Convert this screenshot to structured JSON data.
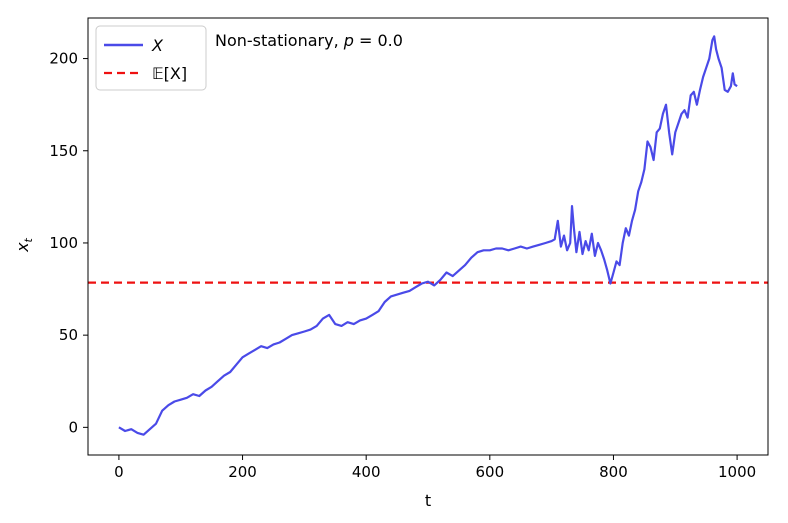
{
  "chart_data": {
    "type": "line",
    "xlabel": "t",
    "ylabel": "x",
    "ylabel_sub": "t",
    "xlim": [
      -50,
      1050
    ],
    "ylim": [
      -15,
      222
    ],
    "xticks": [
      0,
      200,
      400,
      600,
      800,
      1000
    ],
    "yticks": [
      0,
      50,
      100,
      150,
      200
    ],
    "annotation": {
      "prefix": "Non-stationary, ",
      "var": "p",
      "suffix": " = 0.0"
    },
    "legend": {
      "placement": "upper-left",
      "entries": [
        {
          "label": "X",
          "style": "solid",
          "color": "#4a4ae8"
        },
        {
          "label": "𝔼[X]",
          "style": "dashed",
          "color": "#ee1111"
        }
      ]
    },
    "series": [
      {
        "name": "X",
        "color": "#4a4ae8",
        "x": [
          0,
          10,
          20,
          30,
          40,
          50,
          60,
          70,
          80,
          90,
          100,
          110,
          120,
          130,
          140,
          150,
          160,
          170,
          180,
          190,
          200,
          210,
          220,
          230,
          240,
          250,
          260,
          270,
          280,
          290,
          300,
          310,
          320,
          330,
          340,
          350,
          360,
          370,
          380,
          390,
          400,
          410,
          420,
          430,
          440,
          450,
          460,
          470,
          480,
          490,
          500,
          510,
          520,
          530,
          540,
          550,
          560,
          570,
          580,
          590,
          600,
          610,
          620,
          630,
          640,
          650,
          660,
          670,
          680,
          690,
          700,
          705,
          710,
          715,
          720,
          725,
          730,
          733,
          736,
          740,
          745,
          750,
          755,
          760,
          765,
          770,
          775,
          780,
          785,
          790,
          795,
          800,
          805,
          810,
          815,
          820,
          825,
          830,
          835,
          840,
          845,
          850,
          855,
          860,
          865,
          870,
          875,
          880,
          885,
          890,
          895,
          900,
          905,
          910,
          915,
          920,
          925,
          930,
          935,
          940,
          945,
          950,
          955,
          960,
          963,
          966,
          970,
          975,
          980,
          985,
          990,
          993,
          996,
          1000
        ],
        "values": [
          0,
          -2,
          -1,
          -3,
          -4,
          -1,
          2,
          9,
          12,
          14,
          15,
          16,
          18,
          17,
          20,
          22,
          25,
          28,
          30,
          34,
          38,
          40,
          42,
          44,
          43,
          45,
          46,
          48,
          50,
          51,
          52,
          53,
          55,
          59,
          61,
          56,
          55,
          57,
          56,
          58,
          59,
          61,
          63,
          68,
          71,
          72,
          73,
          74,
          76,
          78,
          79,
          77,
          80,
          84,
          82,
          85,
          88,
          92,
          95,
          96,
          96,
          97,
          97,
          96,
          97,
          98,
          97,
          98,
          99,
          100,
          101,
          102,
          112,
          98,
          104,
          96,
          100,
          120,
          108,
          95,
          106,
          94,
          101,
          96,
          105,
          93,
          100,
          96,
          91,
          85,
          78,
          84,
          90,
          88,
          100,
          108,
          104,
          112,
          118,
          128,
          133,
          140,
          155,
          152,
          145,
          160,
          162,
          170,
          175,
          160,
          148,
          160,
          165,
          170,
          172,
          168,
          180,
          182,
          175,
          183,
          190,
          195,
          200,
          210,
          212,
          205,
          200,
          195,
          183,
          182,
          185,
          192,
          186,
          185
        ]
      }
    ],
    "hlines": [
      {
        "name": "E[X]",
        "y": 78.5,
        "color": "#ee1111"
      }
    ]
  }
}
